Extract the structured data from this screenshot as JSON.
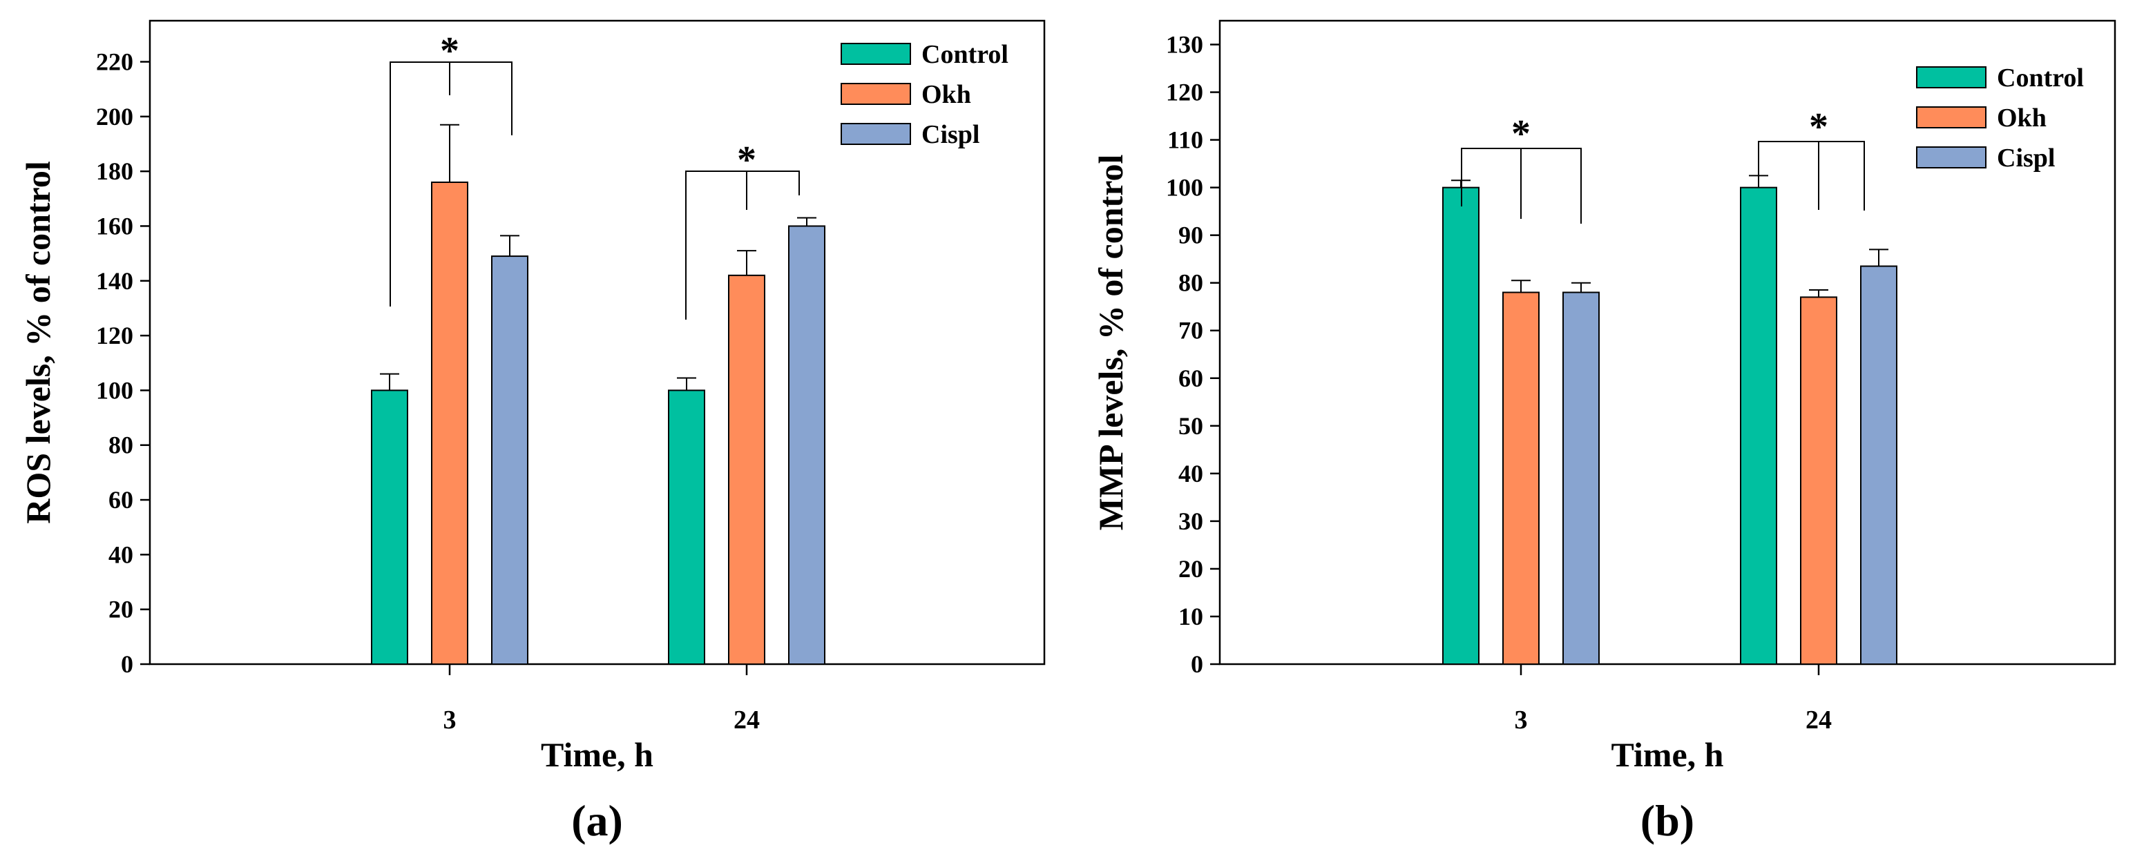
{
  "chart_data": [
    {
      "type": "bar",
      "panel_label": "(a)",
      "xlabel": "Time, h",
      "ylabel": "ROS levels, % of control",
      "categories": [
        "3",
        "24"
      ],
      "ylim": [
        0,
        235
      ],
      "yticks": [
        0,
        20,
        40,
        60,
        80,
        100,
        120,
        140,
        160,
        180,
        200,
        220
      ],
      "legend_position": "top-right",
      "series": [
        {
          "name": "Control",
          "color": "#00c0a0",
          "values": [
            100,
            100
          ],
          "errors": [
            6,
            4.5
          ]
        },
        {
          "name": "Okh",
          "color": "#ff8c5a",
          "values": [
            176,
            142
          ],
          "errors": [
            21,
            9
          ]
        },
        {
          "name": "Cispl",
          "color": "#88a4d0",
          "values": [
            149,
            160
          ],
          "errors": [
            7.5,
            3
          ]
        }
      ],
      "annotations": [
        {
          "text": "*",
          "category": "3"
        },
        {
          "text": "*",
          "category": "24"
        }
      ]
    },
    {
      "type": "bar",
      "panel_label": "(b)",
      "xlabel": "Time, h",
      "ylabel": "MMP levels, % of control",
      "categories": [
        "3",
        "24"
      ],
      "ylim": [
        0,
        135
      ],
      "yticks": [
        0,
        10,
        20,
        30,
        40,
        50,
        60,
        70,
        80,
        90,
        100,
        110,
        120,
        130
      ],
      "legend_position": "top-right",
      "series": [
        {
          "name": "Control",
          "color": "#00c0a0",
          "values": [
            100,
            100
          ],
          "errors": [
            1.5,
            2.5
          ]
        },
        {
          "name": "Okh",
          "color": "#ff8c5a",
          "values": [
            78,
            77
          ],
          "errors": [
            2.5,
            1.5
          ]
        },
        {
          "name": "Cispl",
          "color": "#88a4d0",
          "values": [
            78,
            83.5
          ],
          "errors": [
            2,
            3.5
          ]
        }
      ],
      "annotations": [
        {
          "text": "*",
          "category": "3"
        },
        {
          "text": "*",
          "category": "24"
        }
      ]
    }
  ]
}
